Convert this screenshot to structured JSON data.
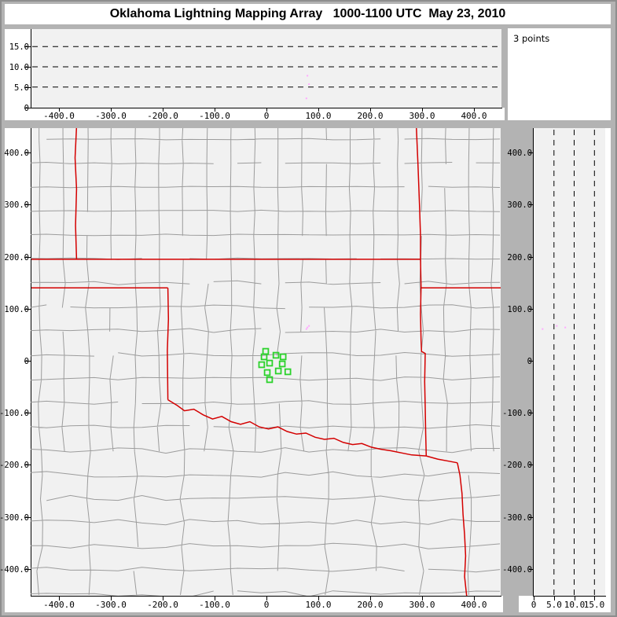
{
  "title": "Oklahoma Lightning Mapping Array   1000-1100 UTC  May 23, 2010",
  "points_box": {
    "label": "3 points"
  },
  "colors": {
    "frame_gray": "#b3b3b3",
    "plot_bg": "#f1f1f1",
    "panel_white": "#ffffff",
    "county_line": "#9c9c9c",
    "state_border": "#d40000",
    "station_green": "#2bd22b",
    "source_point_pink": "#ffaaff",
    "axis_black": "#000000"
  },
  "axes": {
    "ew_ticks": [
      [
        "-400.0",
        -400
      ],
      [
        "-300.0",
        -300
      ],
      [
        "-200.0",
        -200
      ],
      [
        "-100.0",
        -100
      ],
      [
        "0",
        0
      ],
      [
        "100.0",
        100
      ],
      [
        "200.0",
        200
      ],
      [
        "300.0",
        300
      ],
      [
        "400.0",
        400
      ]
    ],
    "ns_ticks": [
      [
        "400.0",
        400
      ],
      [
        "300.0",
        300
      ],
      [
        "200.0",
        200
      ],
      [
        "100.0",
        100
      ],
      [
        "0",
        0
      ],
      [
        "-100.0",
        -100
      ],
      [
        "-200.0",
        -200
      ],
      [
        "-300.0",
        -300
      ],
      [
        "-400.0",
        -400
      ]
    ],
    "alt_ticks_top_panel": [
      [
        "15.0",
        15
      ],
      [
        "10.0",
        10
      ],
      [
        "5.0",
        5
      ],
      [
        "0",
        0
      ]
    ],
    "alt_ticks_right_panel": [
      [
        "0",
        0
      ],
      [
        "5.0",
        5
      ],
      [
        "10.0",
        10
      ],
      [
        "15.0",
        15
      ]
    ],
    "alt_gridlines_km": [
      5,
      10,
      15
    ]
  },
  "map": {
    "county_grid": {
      "seed": 7,
      "cell_km": 46,
      "skip_probability": 0.07
    },
    "stations_km": [
      [
        -1.5,
        18.1
      ],
      [
        18.3,
        10.6
      ],
      [
        -4.6,
        7.6
      ],
      [
        32.1,
        7.6
      ],
      [
        6.1,
        -4.5
      ],
      [
        -9.2,
        -7.6
      ],
      [
        30.5,
        -6.0
      ],
      [
        1.5,
        -22.7
      ],
      [
        22.9,
        -19.6
      ],
      [
        41.2,
        -21.1
      ],
      [
        6.1,
        -36.3
      ]
    ],
    "state_borders_km": {
      "kansas_oklahoma_37n": [
        [
          -453,
          195
        ],
        [
          297,
          195
        ]
      ],
      "colorado_kansas_102w": [
        [
          -366,
          450
        ],
        [
          -369,
          390
        ],
        [
          -366,
          330
        ],
        [
          -368,
          260
        ],
        [
          -366,
          195
        ]
      ],
      "kansas_missouri_94w": [
        [
          289,
          450
        ],
        [
          292,
          380
        ],
        [
          295,
          300
        ],
        [
          297,
          240
        ],
        [
          297,
          195
        ]
      ],
      "oklahoma_east_border": [
        [
          297,
          195
        ],
        [
          298,
          142
        ],
        [
          297,
          90
        ],
        [
          298,
          40
        ],
        [
          299,
          18
        ],
        [
          306,
          14
        ],
        [
          305,
          -40
        ],
        [
          306,
          -90
        ],
        [
          307,
          -140
        ],
        [
          308,
          -183
        ]
      ],
      "missouri_arkansas_365n": [
        [
          297,
          140
        ],
        [
          454,
          140
        ]
      ],
      "panhandle_south_365n": [
        [
          -453,
          140
        ],
        [
          -190,
          140
        ]
      ],
      "oklahoma_texas_100w": [
        [
          -190,
          140
        ],
        [
          -189,
          80
        ],
        [
          -191,
          20
        ],
        [
          -190,
          -75
        ]
      ],
      "red_river": [
        [
          -190,
          -75
        ],
        [
          -172,
          -86
        ],
        [
          -158,
          -96
        ],
        [
          -140,
          -93
        ],
        [
          -122,
          -104
        ],
        [
          -104,
          -112
        ],
        [
          -86,
          -107
        ],
        [
          -68,
          -117
        ],
        [
          -50,
          -122
        ],
        [
          -32,
          -117
        ],
        [
          -14,
          -127
        ],
        [
          4,
          -131
        ],
        [
          22,
          -127
        ],
        [
          40,
          -136
        ],
        [
          58,
          -141
        ],
        [
          76,
          -139
        ],
        [
          94,
          -147
        ],
        [
          112,
          -151
        ],
        [
          130,
          -149
        ],
        [
          148,
          -157
        ],
        [
          166,
          -161
        ],
        [
          184,
          -159
        ],
        [
          202,
          -166
        ],
        [
          220,
          -170
        ],
        [
          240,
          -173
        ],
        [
          260,
          -177
        ],
        [
          280,
          -181
        ],
        [
          308,
          -183
        ]
      ],
      "texas_arkansas_red_river": [
        [
          308,
          -183
        ],
        [
          330,
          -189
        ],
        [
          352,
          -193
        ],
        [
          368,
          -196
        ]
      ],
      "texas_louisiana": [
        [
          368,
          -196
        ],
        [
          373,
          -220
        ],
        [
          377,
          -255
        ],
        [
          379,
          -295
        ],
        [
          382,
          -335
        ],
        [
          384,
          -375
        ],
        [
          382,
          -415
        ],
        [
          386,
          -453
        ]
      ]
    }
  },
  "points": [
    {
      "ew": 79,
      "ns": 64,
      "alt": 7.8
    },
    {
      "ew": 82,
      "ns": 67,
      "alt": 5.7
    },
    {
      "ew": 77,
      "ns": 61,
      "alt": 2.2
    }
  ],
  "chart_data": [
    {
      "type": "scatter",
      "panel": "altitude-vs-eastwest",
      "x": [
        79,
        82,
        77
      ],
      "y": [
        7.8,
        5.7,
        2.2
      ],
      "xlim": [
        -455,
        455
      ],
      "ylim": [
        0,
        19
      ],
      "xticks": [
        -400,
        -300,
        -200,
        -100,
        0,
        100,
        200,
        300,
        400
      ],
      "yticks": [
        0,
        5,
        10,
        15
      ],
      "gridlines_y": [
        5,
        10,
        15
      ],
      "grid_style": "dashed"
    },
    {
      "type": "scatter",
      "panel": "plan-view-map",
      "x": [
        79,
        82,
        77
      ],
      "y": [
        64,
        67,
        61
      ],
      "station_markers_x": [
        -1.5,
        18.3,
        -4.6,
        32.1,
        6.1,
        -9.2,
        30.5,
        1.5,
        22.9,
        41.2,
        6.1
      ],
      "station_markers_y": [
        18.1,
        10.6,
        7.6,
        7.6,
        -4.5,
        -7.6,
        -6.0,
        -22.7,
        -19.6,
        -21.1,
        -36.3
      ],
      "xlim": [
        -455,
        455
      ],
      "ylim": [
        -450,
        450
      ],
      "xticks": [
        -400,
        -300,
        -200,
        -100,
        0,
        100,
        200,
        300,
        400
      ],
      "yticks": [
        -400,
        -300,
        -200,
        -100,
        0,
        100,
        200,
        300,
        400
      ],
      "overlay": "state and county boundaries"
    },
    {
      "type": "scatter",
      "panel": "altitude-vs-northsouth",
      "x": [
        7.8,
        5.7,
        2.2
      ],
      "y": [
        64,
        67,
        61
      ],
      "xlim": [
        0,
        19
      ],
      "ylim": [
        -450,
        450
      ],
      "xticks": [
        0,
        5,
        10,
        15
      ],
      "yticks": [
        -400,
        -300,
        -200,
        -100,
        0,
        100,
        200,
        300,
        400
      ],
      "gridlines_x": [
        5,
        10,
        15
      ],
      "grid_style": "dashed",
      "annotation": "3 points"
    }
  ]
}
